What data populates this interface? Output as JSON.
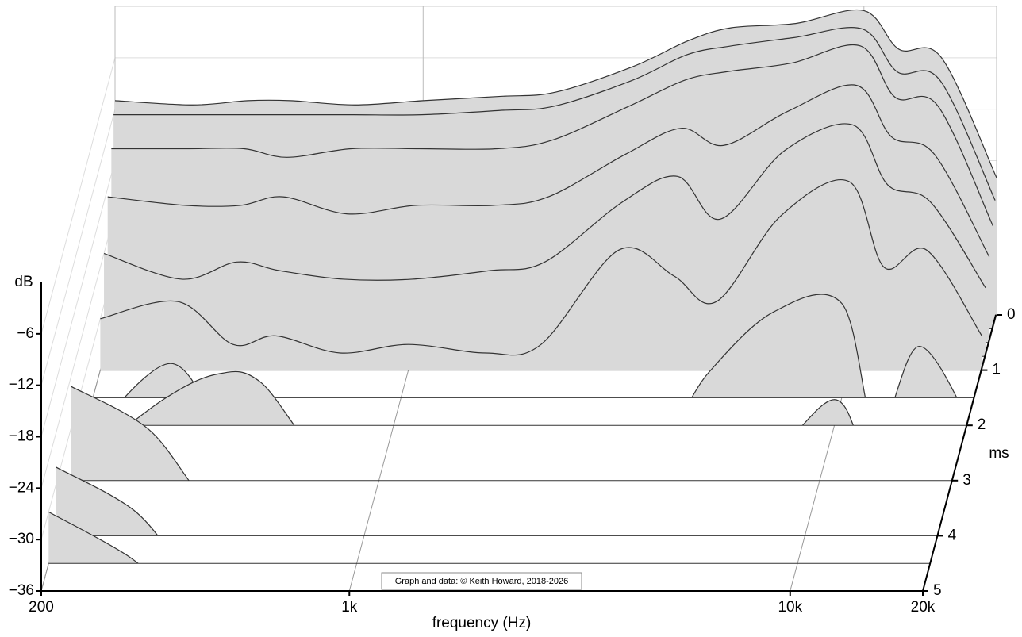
{
  "chart_data": {
    "type": "waterfall",
    "y_label": "dB",
    "x_label": "frequency (Hz)",
    "z_label": "ms",
    "annotation": "Graph and data: © Keith Howard, 2018-2026",
    "xscale": "log",
    "xlim": [
      200,
      20000
    ],
    "xticks": [
      200,
      {
        "value": 1000,
        "label": "1k"
      },
      {
        "value": 10000,
        "label": "10k"
      },
      {
        "value": 20000,
        "label": "20k"
      }
    ],
    "ylim": [
      -36,
      0
    ],
    "yticks": [
      {
        "value": -6,
        "label": "−6"
      },
      {
        "value": -12,
        "label": "−12"
      },
      {
        "value": -18,
        "label": "−18"
      },
      {
        "value": -24,
        "label": "−24"
      },
      {
        "value": -30,
        "label": "−30"
      },
      {
        "value": -36,
        "label": "−36"
      }
    ],
    "zlim": [
      0,
      5
    ],
    "zticks": [
      0,
      1,
      2,
      3,
      4,
      5
    ],
    "grid": true,
    "fill_color": "#d9d9d9",
    "line_color": "#333333",
    "x": [
      200,
      300,
      400,
      500,
      700,
      1000,
      1500,
      2000,
      3000,
      4000,
      5000,
      7000,
      10000,
      12000,
      15000,
      20000
    ],
    "slices": [
      {
        "time": 0,
        "values": [
          -11,
          -11.5,
          -11,
          -11,
          -11.5,
          -11,
          -10.5,
          -10,
          -7,
          -4,
          -2.5,
          -2,
          -0.5,
          -5,
          -6,
          -20
        ]
      },
      {
        "time": 0.1,
        "values": [
          -12,
          -12,
          -12,
          -12,
          -12,
          -12,
          -11.5,
          -11,
          -8,
          -5,
          -4,
          -3,
          -2,
          -7,
          -8,
          -22
        ]
      },
      {
        "time": 0.25,
        "values": [
          -15,
          -15,
          -15,
          -16,
          -15,
          -15,
          -15,
          -14,
          -10,
          -7,
          -6,
          -5,
          -3,
          -9,
          -10,
          -24
        ]
      },
      {
        "time": 0.5,
        "values": [
          -19,
          -20,
          -20,
          -19,
          -21,
          -20,
          -20,
          -19,
          -14,
          -11,
          -13,
          -9,
          -6,
          -12,
          -14,
          -26
        ]
      },
      {
        "time": 0.75,
        "values": [
          -24,
          -27,
          -25,
          -26,
          -27,
          -27,
          -26,
          -25,
          -18,
          -15,
          -20,
          -12,
          -9,
          -16,
          -18,
          -28
        ]
      },
      {
        "time": 1,
        "values": [
          -30,
          -28,
          -33,
          -32,
          -34,
          -33,
          -34,
          -33,
          -22,
          -25,
          -28,
          -18,
          -14,
          -24,
          -22,
          -32
        ]
      },
      {
        "time": 1.5,
        "values": [
          -40,
          -32,
          -40,
          -40,
          -40,
          -40,
          -40,
          -40,
          -40,
          -40,
          -33,
          -26,
          -25,
          -40,
          -30,
          -40
        ]
      },
      {
        "time": 2,
        "values": [
          -40,
          -33,
          -30,
          -31,
          -40,
          -40,
          -40,
          -40,
          -40,
          -40,
          -40,
          -40,
          -33,
          -40,
          -40,
          -40
        ]
      },
      {
        "time": 3,
        "values": [
          -25,
          -30,
          -38,
          -40,
          -40,
          -40,
          -40,
          -40,
          -40,
          -40,
          -40,
          -40,
          -40,
          -40,
          -40,
          -40
        ]
      },
      {
        "time": 4,
        "values": [
          -28,
          -33,
          -40,
          -40,
          -40,
          -40,
          -40,
          -40,
          -40,
          -40,
          -40,
          -40,
          -40,
          -40,
          -40,
          -40
        ]
      },
      {
        "time": 4.5,
        "values": [
          -30,
          -35,
          -40,
          -40,
          -40,
          -40,
          -40,
          -40,
          -40,
          -40,
          -40,
          -40,
          -40,
          -40,
          -40,
          -40
        ]
      }
    ]
  }
}
